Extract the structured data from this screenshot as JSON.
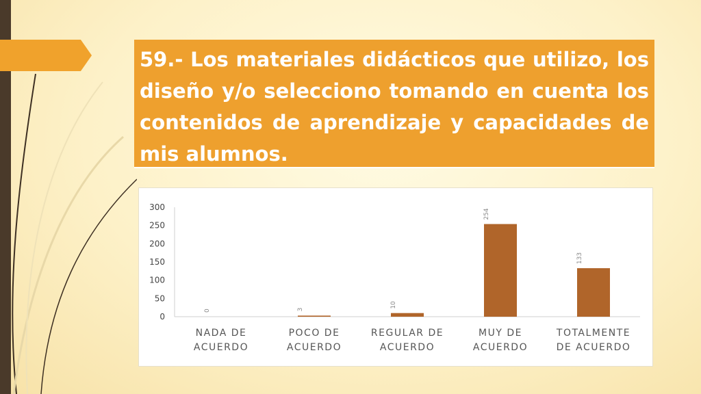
{
  "slide": {
    "title": "59.- Los materiales didácticos que utilizo, los diseño y/o selecciono tomando en cuenta los contenidos de aprendizaje y capacidades de mis alumnos.",
    "bar_color": "#b0652a",
    "accent_color": "#eea02e"
  },
  "chart_data": {
    "type": "bar",
    "categories": [
      [
        "NADA DE",
        "ACUERDO"
      ],
      [
        "POCO DE",
        "ACUERDO"
      ],
      [
        "REGULAR DE",
        "ACUERDO"
      ],
      [
        "MUY DE",
        "ACUERDO"
      ],
      [
        "TOTALMENTE",
        "DE ACUERDO"
      ]
    ],
    "values": [
      0,
      3,
      10,
      254,
      133
    ],
    "data_labels": [
      "0",
      "3",
      "10",
      "254",
      "133"
    ],
    "yticks": [
      "0",
      "50",
      "100",
      "150",
      "200",
      "250",
      "300"
    ],
    "ylim": [
      0,
      300
    ],
    "grid": false,
    "legend": "none"
  }
}
